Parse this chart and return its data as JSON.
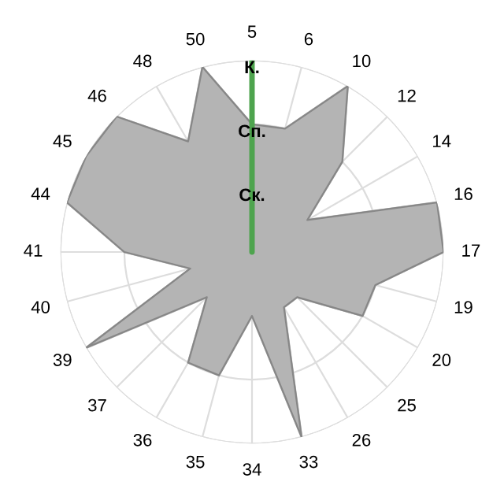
{
  "chart_data": {
    "type": "radar",
    "categories": [
      "5",
      "6",
      "10",
      "12",
      "14",
      "16",
      "17",
      "19",
      "20",
      "25",
      "26",
      "33",
      "34",
      "35",
      "36",
      "37",
      "39",
      "40",
      "41",
      "44",
      "45",
      "46",
      "48",
      "50"
    ],
    "series": [
      {
        "color": "#b4b4b4",
        "values": [
          2,
          2,
          3,
          2,
          1,
          3,
          3,
          2,
          2,
          1,
          1,
          3,
          1,
          2,
          2,
          1,
          3,
          1,
          2,
          3,
          3,
          3,
          2,
          3
        ]
      },
      {
        "color": "#4ea44e",
        "values": [
          3,
          0,
          0,
          0,
          0,
          0,
          0,
          0,
          0,
          0,
          0,
          0,
          0,
          0,
          0,
          0,
          0,
          0,
          0,
          0,
          0,
          0,
          0,
          0
        ]
      }
    ],
    "ylim": [
      0,
      3
    ],
    "yticks": [
      {
        "value": 1,
        "label": "Ск."
      },
      {
        "value": 2,
        "label": "Сп."
      },
      {
        "value": 3,
        "label": "К."
      }
    ],
    "grid": true
  }
}
